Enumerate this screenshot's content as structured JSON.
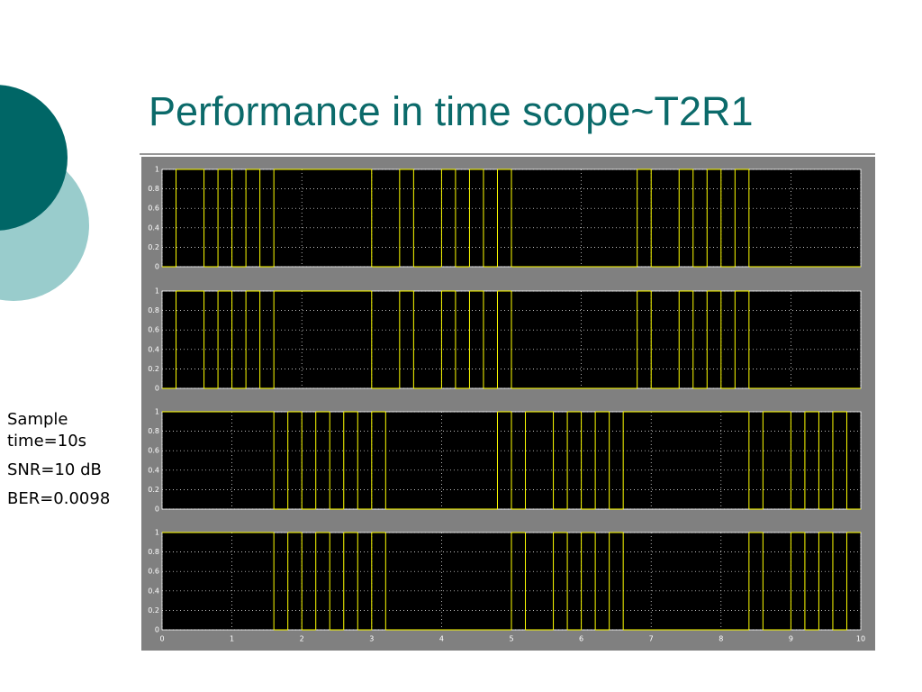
{
  "slide": {
    "title": "Performance in time scope~T2R1",
    "notes": [
      "Sample time=10s",
      "SNR=10 dB",
      "BER=0.0098"
    ]
  },
  "chart_data": [
    {
      "type": "step",
      "color": "#ffff00",
      "xlim": [
        0,
        10
      ],
      "ylim": [
        0,
        1
      ],
      "yticks": [
        0,
        0.2,
        0.4,
        0.6,
        0.8,
        1
      ],
      "grid": true,
      "x": [
        0,
        0.2,
        0.6,
        0.8,
        1.0,
        1.2,
        1.4,
        1.6,
        3.0,
        3.4,
        3.6,
        4.0,
        4.2,
        4.4,
        4.6,
        4.8,
        5.0,
        6.8,
        7.0,
        7.4,
        7.6,
        7.8,
        8.0,
        8.2,
        8.4
      ],
      "values": [
        0,
        1,
        0,
        1,
        0,
        1,
        0,
        1,
        0,
        1,
        0,
        1,
        0,
        1,
        0,
        1,
        0,
        1,
        0,
        1,
        0,
        1,
        0,
        1,
        0
      ]
    },
    {
      "type": "step",
      "color": "#ffff00",
      "xlim": [
        0,
        10
      ],
      "ylim": [
        0,
        1
      ],
      "yticks": [
        0,
        0.2,
        0.4,
        0.6,
        0.8,
        1
      ],
      "grid": true,
      "x": [
        0,
        0.2,
        0.6,
        0.8,
        1.0,
        1.2,
        1.4,
        1.6,
        3.0,
        3.4,
        3.6,
        4.0,
        4.2,
        4.4,
        4.6,
        4.8,
        5.0,
        6.8,
        7.0,
        7.4,
        7.6,
        7.8,
        8.0,
        8.2,
        8.4
      ],
      "values": [
        0,
        1,
        0,
        1,
        0,
        1,
        0,
        1,
        0,
        1,
        0,
        1,
        0,
        1,
        0,
        1,
        0,
        1,
        0,
        1,
        0,
        1,
        0,
        1,
        0
      ]
    },
    {
      "type": "step",
      "color": "#ffff00",
      "xlim": [
        0,
        10
      ],
      "ylim": [
        0,
        1
      ],
      "yticks": [
        0,
        0.2,
        0.4,
        0.6,
        0.8,
        1
      ],
      "grid": true,
      "x": [
        0,
        1.6,
        1.8,
        2.0,
        2.2,
        2.4,
        2.6,
        2.8,
        3.0,
        3.2,
        4.8,
        5.0,
        5.2,
        5.6,
        5.8,
        6.0,
        6.2,
        6.4,
        6.6,
        8.4,
        8.6,
        9.0,
        9.2,
        9.4,
        9.6,
        9.8
      ],
      "values": [
        1,
        0,
        1,
        0,
        1,
        0,
        1,
        0,
        1,
        0,
        1,
        0,
        1,
        0,
        1,
        0,
        1,
        0,
        1,
        0,
        1,
        0,
        1,
        0,
        1,
        0
      ]
    },
    {
      "type": "step",
      "color": "#ffff00",
      "xlim": [
        0,
        10
      ],
      "ylim": [
        0,
        1
      ],
      "yticks": [
        0,
        0.2,
        0.4,
        0.6,
        0.8,
        1
      ],
      "grid": true,
      "xticks": [
        0,
        1,
        2,
        3,
        4,
        5,
        6,
        7,
        8,
        9,
        10
      ],
      "x": [
        0,
        1.6,
        1.8,
        2.0,
        2.2,
        2.4,
        2.6,
        2.8,
        3.0,
        3.2,
        5.0,
        5.2,
        5.6,
        5.8,
        6.0,
        6.2,
        6.4,
        6.6,
        8.4,
        8.6,
        9.0,
        9.2,
        9.4,
        9.6,
        9.8
      ],
      "values": [
        1,
        0,
        1,
        0,
        1,
        0,
        1,
        0,
        1,
        0,
        1,
        0,
        1,
        0,
        1,
        0,
        1,
        0,
        1,
        0,
        1,
        0,
        1,
        0,
        1
      ]
    }
  ]
}
